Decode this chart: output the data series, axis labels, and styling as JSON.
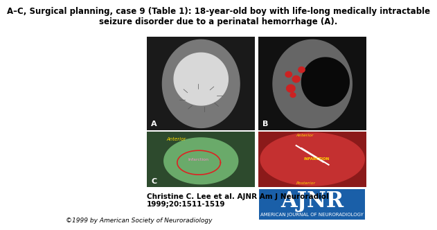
{
  "title": "A–C, Surgical planning, case 9 (Table 1): 18-year-old boy with life-long medically intractable\nseizure disorder due to a perinatal hemorrhage (A).",
  "citation": "Christine C. Lee et al. AJNR Am J Neuroradiol\n1999;20:1511-1519",
  "copyright": "©1999 by American Society of Neuroradiology",
  "ajnr_text": "AJNR",
  "ajnr_subtext": "AMERICAN JOURNAL OF NEURORADIOLOGY",
  "ajnr_bg": "#1a5fa8",
  "bg_color": "#ffffff",
  "title_fontsize": 8.5,
  "citation_fontsize": 7.5,
  "copyright_fontsize": 6.5,
  "ajnr_fontsize": 22,
  "ajnr_sub_fontsize": 5
}
